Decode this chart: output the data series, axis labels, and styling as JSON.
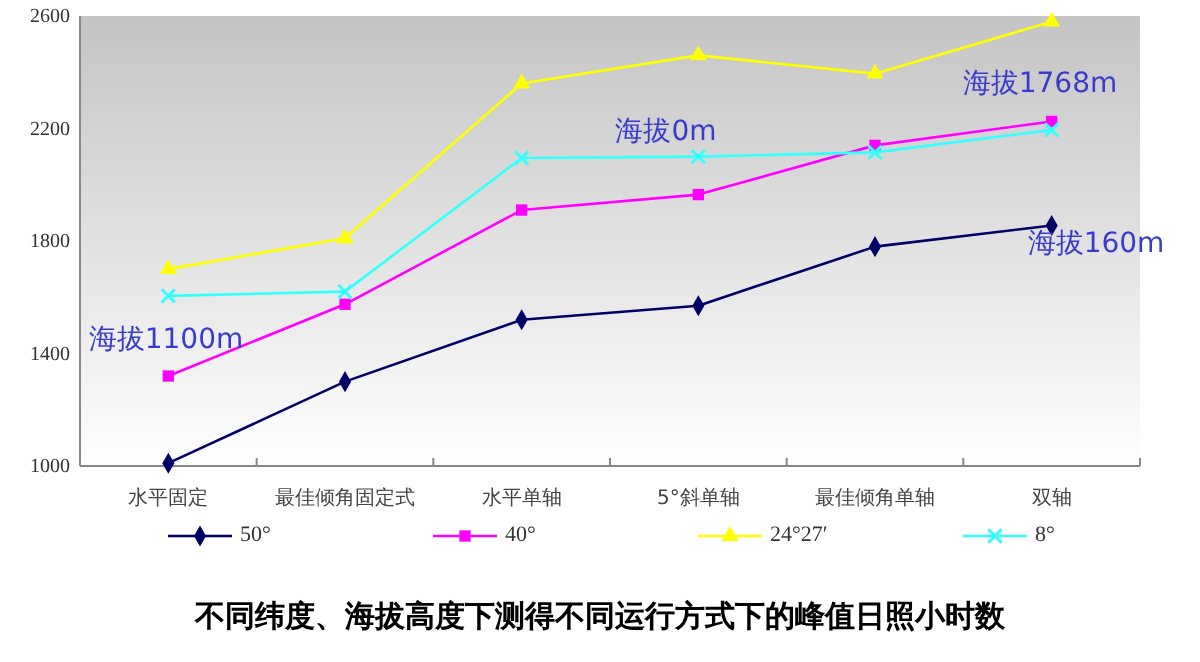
{
  "chart_data": {
    "type": "line",
    "title": "不同纬度、海拔高度下测得不同运行方式下的峰值日照小时数",
    "categories": [
      "水平固定",
      "最佳倾角固定式",
      "水平单轴",
      "5°斜单轴",
      "最佳倾角单轴",
      "双轴"
    ],
    "series": [
      {
        "name": "50°",
        "color": "#000066",
        "marker": "diamond",
        "values": [
          1010,
          1300,
          1520,
          1570,
          1780,
          1855
        ]
      },
      {
        "name": "40°",
        "color": "#ff00ff",
        "marker": "square",
        "values": [
          1320,
          1575,
          1910,
          1965,
          2140,
          2225
        ]
      },
      {
        "name": "24°27′",
        "color": "#ffff00",
        "marker": "triangle",
        "values": [
          1700,
          1810,
          2360,
          2460,
          2395,
          2580
        ]
      },
      {
        "name": "8°",
        "color": "#33ffff",
        "marker": "cross",
        "values": [
          1605,
          1620,
          2095,
          2100,
          2115,
          2195
        ]
      }
    ],
    "ylim": [
      1000,
      2600
    ],
    "yticks": [
      1000,
      1400,
      1800,
      2200,
      2600
    ],
    "grid": false,
    "legend": "bottom",
    "line_style": "solid",
    "annotations": [
      "海拔1100m",
      "海拔0m",
      "海拔1768m",
      "海拔160m"
    ]
  }
}
